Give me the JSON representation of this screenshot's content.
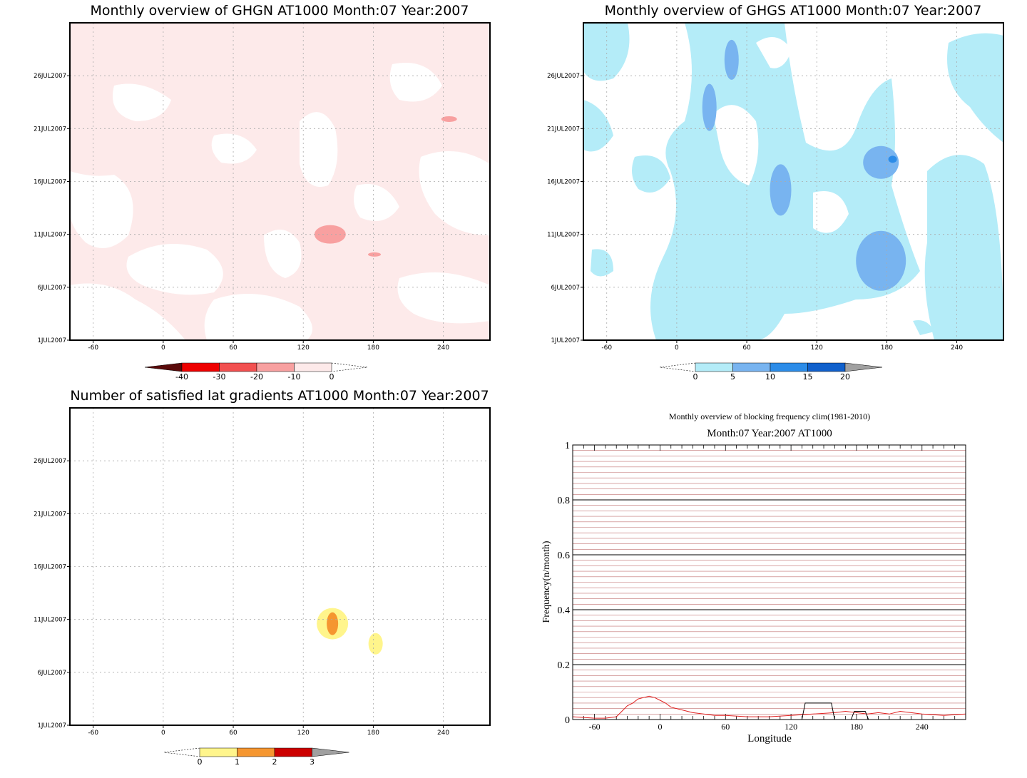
{
  "chart_data": [
    {
      "type": "heatmap",
      "title": "Monthly overview of GHGN AT1000 Month:07 Year:2007",
      "xlabel": "",
      "ylabel": "",
      "x_ticks": [
        "-60",
        "0",
        "60",
        "120",
        "180",
        "240"
      ],
      "y_ticks": [
        "1JUL2007",
        "6JUL2007",
        "11JUL2007",
        "16JUL2007",
        "21JUL2007",
        "26JUL2007"
      ],
      "colorbar": {
        "labels": [
          "-40",
          "-30",
          "-20",
          "-10",
          "0"
        ],
        "colors": [
          "#5a0a0a",
          "#ee0000",
          "#f25050",
          "#f8a0a0",
          "#fdeaea"
        ]
      },
      "field_color": "#fdeaea",
      "features": [
        {
          "kind": "blob",
          "lon": 143,
          "day": 11.0,
          "level": "-20",
          "color": "#f8a0a0"
        },
        {
          "kind": "blob",
          "lon": 181,
          "day": 9.1,
          "level": "-20",
          "color": "#f8a0a0"
        },
        {
          "kind": "blob",
          "lon": 245,
          "day": 21.9,
          "level": "-20",
          "color": "#f8a0a0"
        }
      ]
    },
    {
      "type": "heatmap",
      "title": "Monthly overview of GHGS AT1000 Month:07 Year:2007",
      "xlabel": "",
      "ylabel": "",
      "x_ticks": [
        "-60",
        "0",
        "60",
        "120",
        "180",
        "240"
      ],
      "y_ticks": [
        "1JUL2007",
        "6JUL2007",
        "11JUL2007",
        "16JUL2007",
        "21JUL2007",
        "26JUL2007"
      ],
      "colorbar": {
        "labels": [
          "0",
          "5",
          "10",
          "15",
          "20"
        ],
        "colors": [
          "#b4ecf8",
          "#78b4f0",
          "#2c8ce8",
          "#1060cc",
          "#a0a0a0"
        ]
      },
      "field_color": "#b4ecf8",
      "features": [
        {
          "kind": "blob",
          "lon": 175,
          "day": 8.5,
          "level": "5",
          "color": "#78b4f0"
        },
        {
          "kind": "blob",
          "lon": 89,
          "day": 15.2,
          "level": "5",
          "color": "#78b4f0"
        },
        {
          "kind": "blob",
          "lon": 47,
          "day": 27.5,
          "level": "5",
          "color": "#78b4f0"
        },
        {
          "kind": "blob",
          "lon": 28,
          "day": 23.0,
          "level": "5",
          "color": "#78b4f0"
        },
        {
          "kind": "blob",
          "lon": 175,
          "day": 17.8,
          "level": "5",
          "color": "#78b4f0"
        },
        {
          "kind": "blob",
          "lon": 185,
          "day": 18.1,
          "level": "10",
          "color": "#2c8ce8"
        }
      ]
    },
    {
      "type": "heatmap",
      "title": "Number of satisfied lat gradients AT1000 Month:07 Year:2007",
      "xlabel": "",
      "ylabel": "",
      "x_ticks": [
        "-60",
        "0",
        "60",
        "120",
        "180",
        "240"
      ],
      "y_ticks": [
        "1JUL2007",
        "6JUL2007",
        "11JUL2007",
        "16JUL2007",
        "21JUL2007",
        "26JUL2007"
      ],
      "colorbar": {
        "labels": [
          "0",
          "1",
          "2",
          "3"
        ],
        "colors": [
          "#fff58c",
          "#f59630",
          "#cc0000",
          "#a0a0a0"
        ]
      },
      "features": [
        {
          "kind": "blob",
          "lon": 145,
          "day": 10.6,
          "level": "0",
          "color": "#fff58c"
        },
        {
          "kind": "blob",
          "lon": 182,
          "day": 8.7,
          "level": "0",
          "color": "#fff58c"
        },
        {
          "kind": "blob",
          "lon": 145,
          "day": 10.6,
          "level": "1",
          "color": "#f59630"
        }
      ]
    },
    {
      "type": "line",
      "title": "Monthly overview of blocking frequency clim(1981-2010)",
      "subtitle": "Month:07 Year:2007  AT1000",
      "xlabel": "Longitude",
      "ylabel": "Frequency(n/month)",
      "xlim": [
        -80,
        280
      ],
      "ylim": [
        0,
        1
      ],
      "x_ticks": [
        -60,
        0,
        60,
        120,
        180,
        240
      ],
      "y_ticks": [
        0,
        0.2,
        0.4,
        0.6,
        0.8,
        1
      ],
      "grid": true,
      "series": [
        {
          "color": "#e02020",
          "x": [
            -80,
            -60,
            -50,
            -40,
            -35,
            -30,
            -25,
            -20,
            -15,
            -10,
            -5,
            0,
            5,
            10,
            20,
            30,
            40,
            50,
            60,
            80,
            100,
            120,
            140,
            160,
            170,
            180,
            190,
            200,
            210,
            220,
            230,
            240,
            260,
            280
          ],
          "y": [
            0.01,
            0.005,
            0.005,
            0.01,
            0.03,
            0.05,
            0.06,
            0.075,
            0.08,
            0.085,
            0.08,
            0.07,
            0.06,
            0.045,
            0.035,
            0.025,
            0.02,
            0.015,
            0.015,
            0.01,
            0.01,
            0.015,
            0.02,
            0.025,
            0.03,
            0.025,
            0.02,
            0.025,
            0.02,
            0.03,
            0.025,
            0.02,
            0.015,
            0.02
          ]
        },
        {
          "color": "#000000",
          "x": [
            -80,
            130,
            133,
            157,
            160,
            175,
            178,
            188,
            191,
            280
          ],
          "y": [
            0,
            0,
            0.06,
            0.06,
            0,
            0,
            0.03,
            0.03,
            0,
            0
          ]
        }
      ]
    }
  ]
}
